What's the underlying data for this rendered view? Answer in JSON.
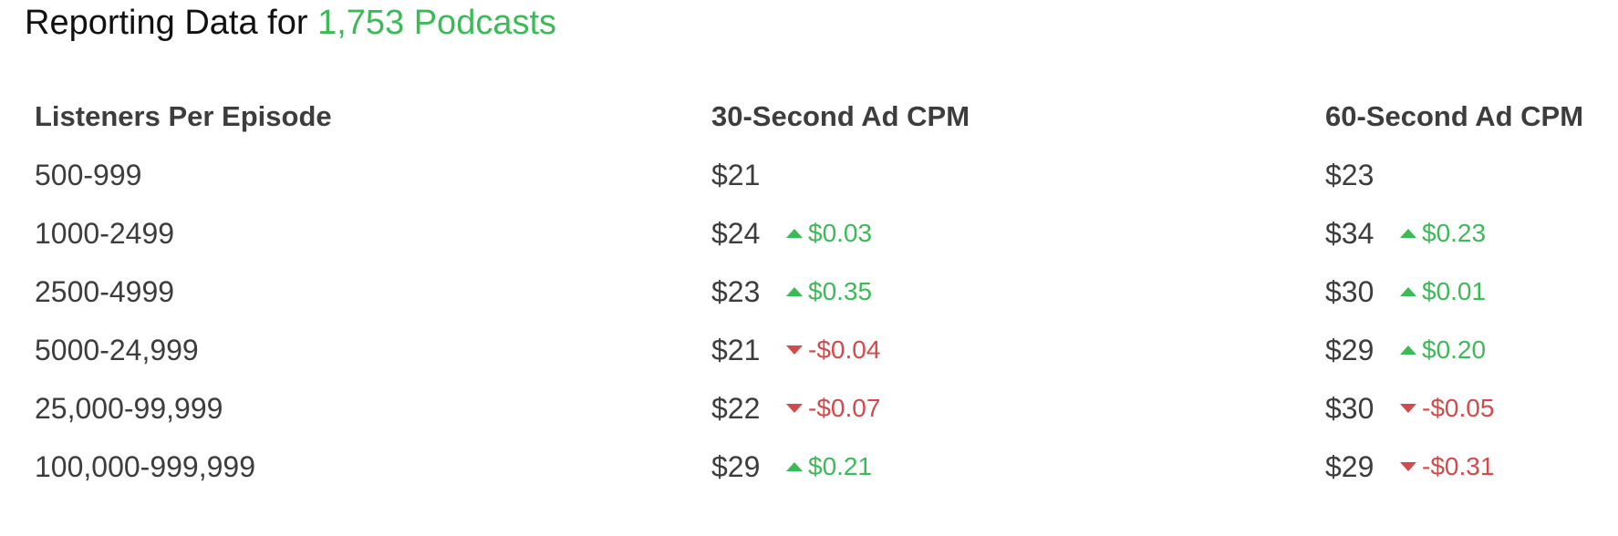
{
  "title": {
    "prefix": "Reporting Data for ",
    "count": "1,753 Podcasts"
  },
  "colors": {
    "positive": "#3dba58",
    "negative": "#d24a4a",
    "text": "#3d3d3d"
  },
  "table": {
    "headers": [
      "Listeners Per Episode",
      "30-Second Ad CPM",
      "60-Second Ad CPM"
    ],
    "rows": [
      {
        "listeners": "500-999",
        "cpm30": {
          "price": "$21",
          "change": "",
          "direction": "none"
        },
        "cpm60": {
          "price": "$23",
          "change": "",
          "direction": "none"
        }
      },
      {
        "listeners": "1000-2499",
        "cpm30": {
          "price": "$24",
          "change": "$0.03",
          "direction": "up"
        },
        "cpm60": {
          "price": "$34",
          "change": "$0.23",
          "direction": "up"
        }
      },
      {
        "listeners": "2500-4999",
        "cpm30": {
          "price": "$23",
          "change": "$0.35",
          "direction": "up"
        },
        "cpm60": {
          "price": "$30",
          "change": "$0.01",
          "direction": "up"
        }
      },
      {
        "listeners": "5000-24,999",
        "cpm30": {
          "price": "$21",
          "change": "-$0.04",
          "direction": "down"
        },
        "cpm60": {
          "price": "$29",
          "change": "$0.20",
          "direction": "up"
        }
      },
      {
        "listeners": "25,000-99,999",
        "cpm30": {
          "price": "$22",
          "change": "-$0.07",
          "direction": "down"
        },
        "cpm60": {
          "price": "$30",
          "change": "-$0.05",
          "direction": "down"
        }
      },
      {
        "listeners": "100,000-999,999",
        "cpm30": {
          "price": "$29",
          "change": "$0.21",
          "direction": "up"
        },
        "cpm60": {
          "price": "$29",
          "change": "-$0.31",
          "direction": "down"
        }
      }
    ]
  }
}
